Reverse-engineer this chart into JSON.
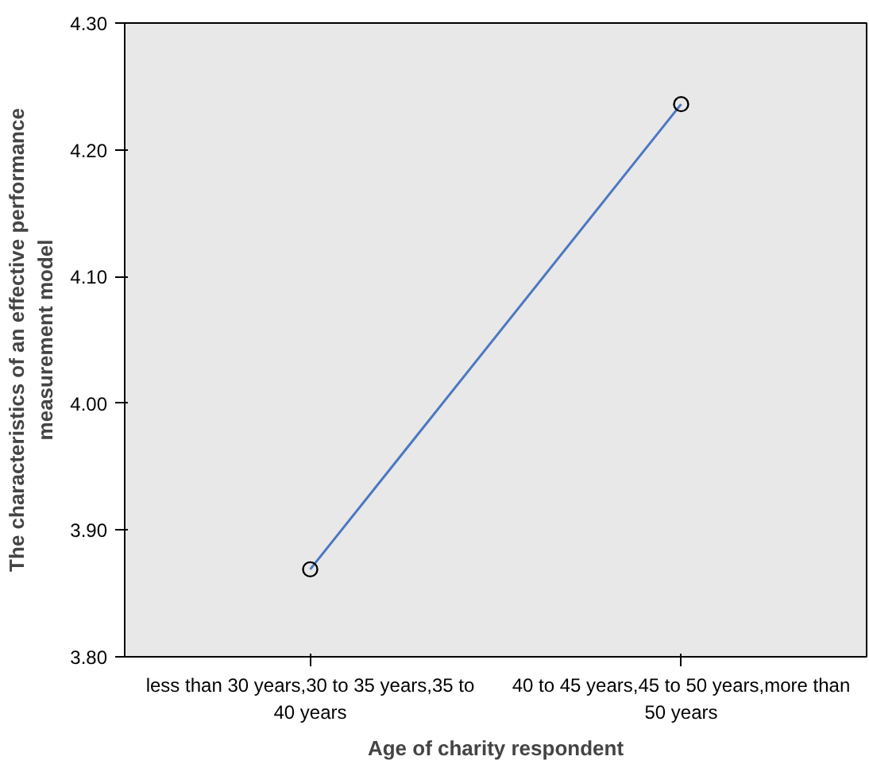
{
  "chart_data": {
    "type": "line",
    "xlabel": "Age of charity respondent",
    "ylabel": "The characteristics of an effective performance measurement model",
    "categories": [
      "less than 30 years,30 to 35 years,35 to 40 years",
      "40 to 45 years,45 to 50 years,more than 50 years"
    ],
    "series": [
      {
        "color": "#4a78c2",
        "values": [
          3.869,
          4.236
        ]
      }
    ],
    "ylim": [
      3.8,
      4.3
    ],
    "yticks": [
      {
        "value": 3.8,
        "label": "3.80"
      },
      {
        "value": 3.9,
        "label": "3.90"
      },
      {
        "value": 4.0,
        "label": "4.00"
      },
      {
        "value": 4.1,
        "label": "4.10"
      },
      {
        "value": 4.2,
        "label": "4.20"
      },
      {
        "value": 4.3,
        "label": "4.30"
      }
    ],
    "grid": false,
    "marker": "circle",
    "line_style": "solid"
  }
}
